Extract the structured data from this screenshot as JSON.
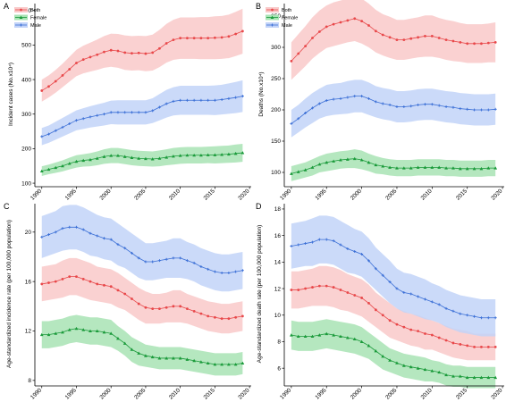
{
  "chart_data": [
    {
      "panel": "A",
      "type": "line",
      "ylabel": "Incident cases (No.x10⁴)",
      "xlabel": "",
      "xlim": [
        1989,
        2020.5
      ],
      "ylim": [
        95,
        620
      ],
      "xticks": [
        1990,
        1995,
        2000,
        2005,
        2010,
        2015,
        2020
      ],
      "yticks": [
        100,
        200,
        300,
        400,
        500,
        600
      ],
      "legend": "top-left",
      "grid": false,
      "x": [
        1990,
        1991,
        1992,
        1993,
        1994,
        1995,
        1996,
        1997,
        1998,
        1999,
        2000,
        2001,
        2002,
        2003,
        2004,
        2005,
        2006,
        2007,
        2008,
        2009,
        2010,
        2011,
        2012,
        2013,
        2014,
        2015,
        2016,
        2017,
        2018,
        2019
      ],
      "series": [
        {
          "name": "Both",
          "color": "#e8484a",
          "fill": "#f9c9c9",
          "marker": "circle",
          "values": [
            368,
            380,
            395,
            412,
            430,
            448,
            458,
            465,
            472,
            480,
            485,
            483,
            478,
            476,
            477,
            475,
            478,
            490,
            505,
            515,
            520,
            520,
            520,
            520,
            520,
            521,
            522,
            525,
            532,
            540
          ],
          "band": [
            32,
            32,
            33,
            34,
            36,
            38,
            40,
            42,
            44,
            46,
            48,
            49,
            50,
            50,
            50,
            51,
            52,
            54,
            56,
            58,
            60,
            60,
            60,
            61,
            61,
            62,
            62,
            63,
            64,
            65
          ]
        },
        {
          "name": "Female",
          "color": "#1a9a3a",
          "fill": "#a8e3b4",
          "marker": "triangle",
          "values": [
            135,
            140,
            145,
            150,
            157,
            163,
            166,
            168,
            172,
            177,
            180,
            180,
            177,
            174,
            172,
            171,
            170,
            172,
            175,
            178,
            180,
            181,
            181,
            181,
            182,
            182,
            183,
            184,
            186,
            188
          ],
          "band": [
            14,
            14,
            15,
            16,
            17,
            18,
            18,
            19,
            20,
            21,
            22,
            22,
            22,
            22,
            22,
            22,
            22,
            23,
            23,
            24,
            24,
            24,
            24,
            24,
            24,
            25,
            25,
            25,
            26,
            26
          ]
        },
        {
          "name": "Male",
          "color": "#3b6fd6",
          "fill": "#c2d3f8",
          "marker": "cross",
          "values": [
            235,
            242,
            252,
            262,
            272,
            282,
            287,
            292,
            296,
            300,
            305,
            305,
            305,
            305,
            305,
            305,
            310,
            320,
            330,
            337,
            340,
            340,
            340,
            340,
            340,
            340,
            342,
            345,
            348,
            352
          ],
          "band": [
            25,
            25,
            26,
            27,
            28,
            29,
            30,
            31,
            32,
            33,
            34,
            35,
            35,
            35,
            35,
            35,
            36,
            38,
            40,
            41,
            42,
            42,
            42,
            42,
            42,
            43,
            43,
            44,
            45,
            46
          ]
        }
      ]
    },
    {
      "panel": "B",
      "type": "line",
      "ylabel": "Deaths (No.x10⁴)",
      "xlabel": "",
      "xlim": [
        1989,
        2020.5
      ],
      "ylim": [
        80,
        370
      ],
      "xticks": [
        1990,
        1995,
        2000,
        2005,
        2010,
        2015,
        2020
      ],
      "yticks": [
        100,
        150,
        200,
        250,
        300,
        350
      ],
      "legend": "top-left",
      "grid": false,
      "x": [
        1990,
        1991,
        1992,
        1993,
        1994,
        1995,
        1996,
        1997,
        1998,
        1999,
        2000,
        2001,
        2002,
        2003,
        2004,
        2005,
        2006,
        2007,
        2008,
        2009,
        2010,
        2011,
        2012,
        2013,
        2014,
        2015,
        2016,
        2017,
        2018,
        2019
      ],
      "series": [
        {
          "name": "Both",
          "color": "#e8484a",
          "fill": "#f9c9c9",
          "marker": "circle",
          "values": [
            278,
            290,
            302,
            315,
            325,
            333,
            337,
            340,
            343,
            346,
            342,
            335,
            326,
            320,
            316,
            312,
            312,
            314,
            316,
            318,
            318,
            315,
            312,
            310,
            308,
            306,
            306,
            306,
            307,
            308
          ],
          "band": [
            30,
            31,
            32,
            33,
            34,
            34,
            35,
            35,
            35,
            36,
            36,
            35,
            34,
            33,
            33,
            32,
            32,
            32,
            32,
            33,
            33,
            32,
            32,
            32,
            31,
            31,
            31,
            31,
            31,
            32
          ]
        },
        {
          "name": "Female",
          "color": "#1a9a3a",
          "fill": "#a8e3b4",
          "marker": "triangle",
          "values": [
            98,
            101,
            104,
            108,
            113,
            116,
            118,
            120,
            121,
            122,
            120,
            116,
            112,
            110,
            108,
            107,
            107,
            107,
            108,
            108,
            108,
            108,
            107,
            107,
            106,
            106,
            106,
            106,
            107,
            107
          ],
          "band": [
            12,
            12,
            12,
            13,
            13,
            14,
            14,
            14,
            14,
            15,
            15,
            14,
            14,
            13,
            13,
            13,
            13,
            13,
            13,
            13,
            13,
            13,
            13,
            13,
            13,
            13,
            13,
            13,
            13,
            13
          ]
        },
        {
          "name": "Male",
          "color": "#3b6fd6",
          "fill": "#c2d3f8",
          "marker": "cross",
          "values": [
            178,
            186,
            195,
            203,
            210,
            215,
            217,
            218,
            220,
            222,
            222,
            218,
            213,
            210,
            208,
            205,
            205,
            206,
            208,
            209,
            209,
            207,
            205,
            204,
            202,
            201,
            200,
            200,
            200,
            201
          ],
          "band": [
            22,
            22,
            23,
            24,
            24,
            25,
            25,
            25,
            26,
            26,
            26,
            26,
            25,
            25,
            25,
            25,
            25,
            25,
            25,
            25,
            25,
            25,
            25,
            25,
            25,
            25,
            25,
            25,
            25,
            25
          ]
        }
      ]
    },
    {
      "panel": "C",
      "type": "line",
      "ylabel": "Age-standardized incidence rate (per 100,000 population)",
      "xlabel": "",
      "xlim": [
        1989,
        2020.5
      ],
      "ylim": [
        7.7,
        22.3
      ],
      "xticks": [
        1990,
        1995,
        2000,
        2005,
        2010,
        2015,
        2020
      ],
      "yticks": [
        8,
        12,
        16,
        20
      ],
      "legend": "none",
      "grid": false,
      "x": [
        1990,
        1991,
        1992,
        1993,
        1994,
        1995,
        1996,
        1997,
        1998,
        1999,
        2000,
        2001,
        2002,
        2003,
        2004,
        2005,
        2006,
        2007,
        2008,
        2009,
        2010,
        2011,
        2012,
        2013,
        2014,
        2015,
        2016,
        2017,
        2018,
        2019
      ],
      "series": [
        {
          "name": "Both",
          "color": "#e8484a",
          "fill": "#f9c9c9",
          "marker": "circle",
          "values": [
            15.8,
            15.9,
            16.0,
            16.2,
            16.4,
            16.4,
            16.2,
            16.0,
            15.8,
            15.7,
            15.6,
            15.3,
            15.0,
            14.6,
            14.2,
            13.9,
            13.8,
            13.8,
            13.9,
            14.0,
            14.0,
            13.8,
            13.6,
            13.4,
            13.2,
            13.1,
            13.0,
            13.0,
            13.1,
            13.2
          ],
          "band": [
            1.4,
            1.4,
            1.4,
            1.5,
            1.5,
            1.5,
            1.5,
            1.5,
            1.4,
            1.4,
            1.4,
            1.4,
            1.3,
            1.3,
            1.3,
            1.3,
            1.2,
            1.2,
            1.2,
            1.3,
            1.3,
            1.2,
            1.2,
            1.2,
            1.2,
            1.2,
            1.2,
            1.2,
            1.2,
            1.2
          ]
        },
        {
          "name": "Female",
          "color": "#1a9a3a",
          "fill": "#a8e3b4",
          "marker": "triangle",
          "values": [
            11.7,
            11.7,
            11.8,
            11.9,
            12.1,
            12.2,
            12.1,
            12.0,
            12.0,
            11.9,
            11.8,
            11.4,
            11.0,
            10.5,
            10.2,
            10.0,
            9.9,
            9.8,
            9.8,
            9.8,
            9.8,
            9.7,
            9.6,
            9.5,
            9.4,
            9.3,
            9.3,
            9.3,
            9.3,
            9.4
          ],
          "band": [
            1.1,
            1.1,
            1.1,
            1.1,
            1.1,
            1.1,
            1.1,
            1.1,
            1.1,
            1.1,
            1.1,
            1.0,
            1.0,
            1.0,
            1.0,
            0.9,
            0.9,
            0.9,
            0.9,
            0.9,
            0.9,
            0.9,
            0.9,
            0.9,
            0.9,
            0.9,
            0.9,
            0.9,
            0.9,
            0.9
          ]
        },
        {
          "name": "Male",
          "color": "#3b6fd6",
          "fill": "#c2d3f8",
          "marker": "cross",
          "values": [
            19.6,
            19.8,
            20.0,
            20.3,
            20.4,
            20.4,
            20.2,
            19.9,
            19.7,
            19.5,
            19.4,
            19.0,
            18.7,
            18.3,
            17.9,
            17.6,
            17.6,
            17.7,
            17.8,
            17.9,
            17.9,
            17.7,
            17.5,
            17.2,
            17.0,
            16.8,
            16.7,
            16.7,
            16.8,
            16.9
          ],
          "band": [
            1.7,
            1.7,
            1.7,
            1.8,
            1.8,
            1.8,
            1.8,
            1.8,
            1.7,
            1.7,
            1.7,
            1.7,
            1.6,
            1.6,
            1.6,
            1.5,
            1.5,
            1.5,
            1.5,
            1.6,
            1.6,
            1.5,
            1.5,
            1.5,
            1.5,
            1.5,
            1.5,
            1.5,
            1.5,
            1.5
          ]
        }
      ]
    },
    {
      "panel": "D",
      "type": "line",
      "ylabel": "Age-standardized death rate (per 100,000 population)",
      "xlabel": "",
      "xlim": [
        1989,
        2020.5
      ],
      "ylim": [
        4.8,
        18.4
      ],
      "xticks": [
        1990,
        1995,
        2000,
        2005,
        2010,
        2015,
        2020
      ],
      "yticks": [
        6,
        8,
        10,
        12,
        14,
        16,
        18
      ],
      "legend": "none",
      "grid": false,
      "x": [
        1990,
        1991,
        1992,
        1993,
        1994,
        1995,
        1996,
        1997,
        1998,
        1999,
        2000,
        2001,
        2002,
        2003,
        2004,
        2005,
        2006,
        2007,
        2008,
        2009,
        2010,
        2011,
        2012,
        2013,
        2014,
        2015,
        2016,
        2017,
        2018,
        2019
      ],
      "series": [
        {
          "name": "Both",
          "color": "#e8484a",
          "fill": "#f9c9c9",
          "marker": "circle",
          "values": [
            11.9,
            11.9,
            12.0,
            12.1,
            12.2,
            12.2,
            12.1,
            11.9,
            11.7,
            11.5,
            11.3,
            10.9,
            10.4,
            10.0,
            9.6,
            9.3,
            9.1,
            8.9,
            8.8,
            8.6,
            8.5,
            8.3,
            8.1,
            7.9,
            7.8,
            7.7,
            7.6,
            7.6,
            7.6,
            7.6
          ],
          "band": [
            1.4,
            1.4,
            1.4,
            1.4,
            1.5,
            1.5,
            1.5,
            1.5,
            1.4,
            1.4,
            1.4,
            1.4,
            1.3,
            1.3,
            1.3,
            1.2,
            1.2,
            1.2,
            1.2,
            1.2,
            1.1,
            1.1,
            1.1,
            1.1,
            1.1,
            1.1,
            1.0,
            1.0,
            1.0,
            1.0
          ]
        },
        {
          "name": "Female",
          "color": "#1a9a3a",
          "fill": "#a8e3b4",
          "marker": "triangle",
          "values": [
            8.5,
            8.4,
            8.4,
            8.4,
            8.5,
            8.6,
            8.5,
            8.4,
            8.3,
            8.2,
            8.0,
            7.7,
            7.3,
            6.9,
            6.6,
            6.4,
            6.2,
            6.1,
            6.0,
            5.9,
            5.8,
            5.7,
            5.5,
            5.4,
            5.4,
            5.3,
            5.3,
            5.3,
            5.3,
            5.3
          ],
          "band": [
            1.1,
            1.1,
            1.1,
            1.1,
            1.1,
            1.1,
            1.1,
            1.1,
            1.1,
            1.1,
            1.1,
            1.0,
            1.0,
            1.0,
            0.9,
            0.9,
            0.9,
            0.9,
            0.9,
            0.9,
            0.8,
            0.8,
            0.8,
            0.8,
            0.8,
            0.8,
            0.8,
            0.8,
            0.8,
            0.8
          ]
        },
        {
          "name": "Male",
          "color": "#3b6fd6",
          "fill": "#c2d3f8",
          "marker": "cross",
          "values": [
            15.2,
            15.3,
            15.4,
            15.5,
            15.7,
            15.7,
            15.6,
            15.3,
            15.0,
            14.8,
            14.6,
            14.1,
            13.5,
            13.0,
            12.5,
            12.0,
            11.7,
            11.6,
            11.4,
            11.2,
            11.0,
            10.8,
            10.5,
            10.3,
            10.1,
            10.0,
            9.9,
            9.8,
            9.8,
            9.8
          ],
          "band": [
            1.7,
            1.7,
            1.7,
            1.8,
            1.8,
            1.8,
            1.8,
            1.8,
            1.8,
            1.7,
            1.7,
            1.7,
            1.6,
            1.6,
            1.6,
            1.5,
            1.5,
            1.5,
            1.5,
            1.5,
            1.4,
            1.4,
            1.4,
            1.4,
            1.4,
            1.4,
            1.4,
            1.4,
            1.4,
            1.4
          ]
        }
      ]
    }
  ]
}
